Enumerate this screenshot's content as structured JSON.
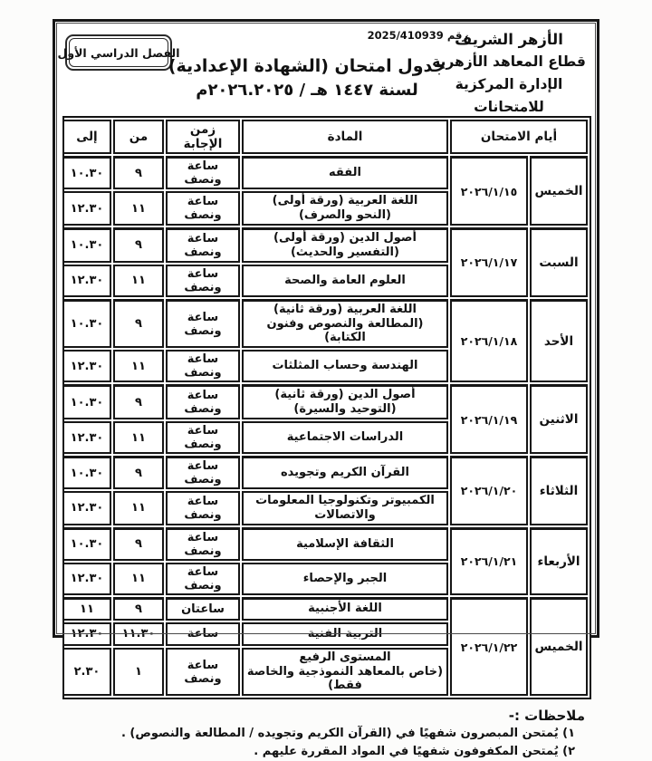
{
  "header": {
    "org_line1": "الأزهر الشريف",
    "org_line2": "قطاع المعاهد الأزهرية",
    "org_line3": "الإدارة المركزية للامتحانات",
    "ref_number": "رقم 2025/410939",
    "semester": "الفصل الدراسي الأول",
    "title": "جدول امتحان (الشهادة الإعدادية)",
    "subtitle": "لسنة ١٤٤٧ هـ / ٢٠٢٥‏.‏٢٠٢٦م"
  },
  "table": {
    "headers": {
      "days": "أيام الامتحان",
      "subject": "المادة",
      "duration": "زمن الإجابة",
      "from": "من",
      "to": "إلى"
    },
    "groups": [
      {
        "day": "الخميس",
        "date": "٢٠٢٦/١/١٥",
        "rows": [
          {
            "subject": "الفقه",
            "duration": "ساعة ونصف",
            "from": "٩",
            "to": "١٠.٣٠"
          },
          {
            "subject": "اللغة العربية (ورقة أولى)\n(النحو والصرف)",
            "duration": "ساعة ونصف",
            "from": "١١",
            "to": "١٢.٣٠"
          }
        ]
      },
      {
        "day": "السبت",
        "date": "٢٠٢٦/١/١٧",
        "rows": [
          {
            "subject": "أصول الدين (ورقة أولى)\n(التفسير والحديث)",
            "duration": "ساعة ونصف",
            "from": "٩",
            "to": "١٠.٣٠"
          },
          {
            "subject": "العلوم العامة والصحة",
            "duration": "ساعة ونصف",
            "from": "١١",
            "to": "١٢.٣٠"
          }
        ]
      },
      {
        "day": "الأحد",
        "date": "٢٠٢٦/١/١٨",
        "rows": [
          {
            "subject": "اللغة العربية (ورقة ثانية)\n(المطالعة والنصوص وفنون الكتابة)",
            "duration": "ساعة ونصف",
            "from": "٩",
            "to": "١٠.٣٠"
          },
          {
            "subject": "الهندسة وحساب المثلثات",
            "duration": "ساعة ونصف",
            "from": "١١",
            "to": "١٢.٣٠"
          }
        ]
      },
      {
        "day": "الاثنين",
        "date": "٢٠٢٦/١/١٩",
        "rows": [
          {
            "subject": "أصول الدين (ورقة ثانية)\n(التوحيد والسيرة)",
            "duration": "ساعة ونصف",
            "from": "٩",
            "to": "١٠.٣٠"
          },
          {
            "subject": "الدراسات الاجتماعية",
            "duration": "ساعة ونصف",
            "from": "١١",
            "to": "١٢.٣٠"
          }
        ]
      },
      {
        "day": "الثلاثاء",
        "date": "٢٠٢٦/١/٢٠",
        "rows": [
          {
            "subject": "القرآن الكريم وتجويده",
            "duration": "ساعة ونصف",
            "from": "٩",
            "to": "١٠.٣٠"
          },
          {
            "subject": "الكمبيوتر وتكنولوجيا المعلومات والاتصالات",
            "duration": "ساعة ونصف",
            "from": "١١",
            "to": "١٢.٣٠"
          }
        ]
      },
      {
        "day": "الأربعاء",
        "date": "٢٠٢٦/١/٢١",
        "rows": [
          {
            "subject": "الثقافة الإسلامية",
            "duration": "ساعة ونصف",
            "from": "٩",
            "to": "١٠.٣٠"
          },
          {
            "subject": "الجبر والإحصاء",
            "duration": "ساعة ونصف",
            "from": "١١",
            "to": "١٢.٣٠"
          }
        ]
      },
      {
        "day": "الخميس",
        "date": "٢٠٢٦/١/٢٢",
        "rows": [
          {
            "subject": "اللغة الأجنبية",
            "duration": "ساعتان",
            "from": "٩",
            "to": "١١"
          },
          {
            "subject": "التربية الفنية",
            "duration": "ساعة",
            "from": "١١.٣٠",
            "to": "١٢.٣٠"
          },
          {
            "subject": "المستوى الرفيع\n(خاص بالمعاهد النموذجية والخاصة فقط)",
            "duration": "ساعة ونصف",
            "from": "١",
            "to": "٢.٣٠"
          }
        ]
      }
    ]
  },
  "notes": {
    "heading": "ملاحظات :-",
    "items": [
      "١) يُمتحن المبصرون شفهيًا في (القرآن الكريم وتجويده / المطالعة والنصوص) .",
      "٢) يُمتحن المكفوفون شفهيًا في المواد المقررة عليهم ."
    ]
  }
}
